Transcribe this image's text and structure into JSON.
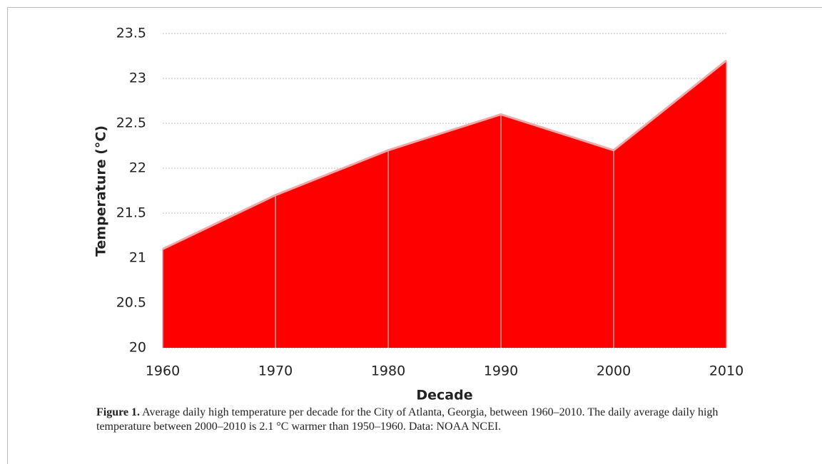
{
  "chart_data": {
    "type": "area",
    "x": [
      1960,
      1970,
      1980,
      1990,
      2000,
      2010
    ],
    "values": [
      21.1,
      21.7,
      22.2,
      22.6,
      22.2,
      23.2
    ],
    "color": "#ff0000",
    "xlim": [
      1960,
      2010
    ],
    "xticks": [
      1960,
      1970,
      1980,
      1990,
      2000,
      2010
    ],
    "ylim": [
      20,
      23.5
    ],
    "yticks": [
      20,
      20.5,
      21,
      21.5,
      22,
      22.5,
      23,
      23.5
    ],
    "grid": true,
    "xlabel": "Decade",
    "ylabel": "Temperature (°C)"
  },
  "caption": {
    "label": "Figure 1.",
    "text": "Average daily high temperature per decade for the City of Atlanta, Georgia, between 1960–2010. The daily average daily high temperature between 2000–2010 is 2.1 °C warmer than 1950–1960. Data: NOAA NCEI."
  }
}
